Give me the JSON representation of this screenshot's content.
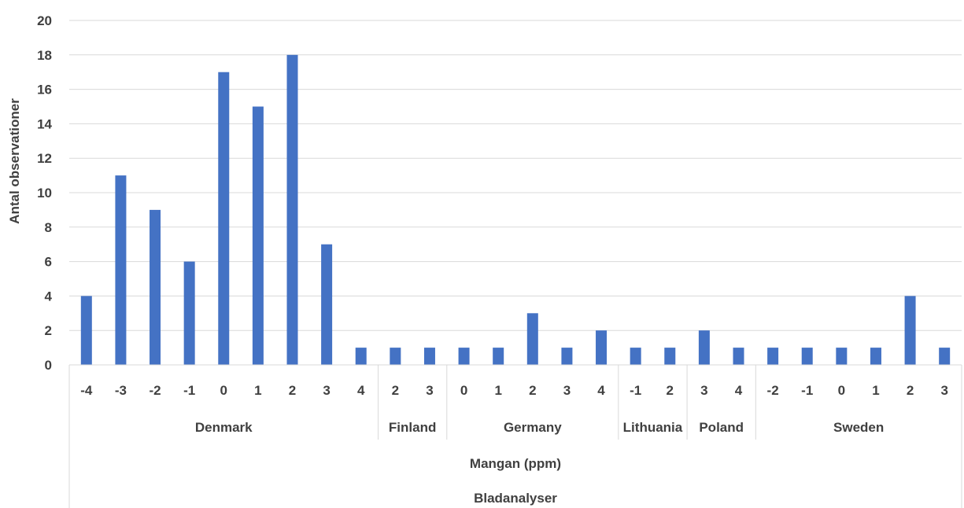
{
  "chart_data": {
    "type": "bar",
    "ylabel": "Antal observationer",
    "xlabel_inner": "Mangan (ppm)",
    "xlabel_outer": "Bladanalyser",
    "ylim": [
      0,
      20
    ],
    "yticks": [
      0,
      2,
      4,
      6,
      8,
      10,
      12,
      14,
      16,
      18,
      20
    ],
    "grid": true,
    "legend": "none",
    "bar_color": "#4472c4",
    "groups": [
      {
        "name": "Denmark",
        "categories": [
          "-4",
          "-3",
          "-2",
          "-1",
          "0",
          "1",
          "2",
          "3",
          "4"
        ],
        "values": [
          4,
          11,
          9,
          6,
          17,
          15,
          18,
          7,
          1
        ]
      },
      {
        "name": "Finland",
        "categories": [
          "2",
          "3"
        ],
        "values": [
          1,
          1
        ]
      },
      {
        "name": "Germany",
        "categories": [
          "0",
          "1",
          "2",
          "3",
          "4"
        ],
        "values": [
          1,
          1,
          3,
          1,
          2
        ]
      },
      {
        "name": "Lithuania",
        "categories": [
          "-1",
          "2"
        ],
        "values": [
          1,
          1
        ]
      },
      {
        "name": "Poland",
        "categories": [
          "3",
          "4"
        ],
        "values": [
          2,
          1
        ]
      },
      {
        "name": "Sweden",
        "categories": [
          "-2",
          "-1",
          "0",
          "1",
          "2",
          "3"
        ],
        "values": [
          1,
          1,
          1,
          1,
          4,
          1
        ]
      }
    ]
  }
}
